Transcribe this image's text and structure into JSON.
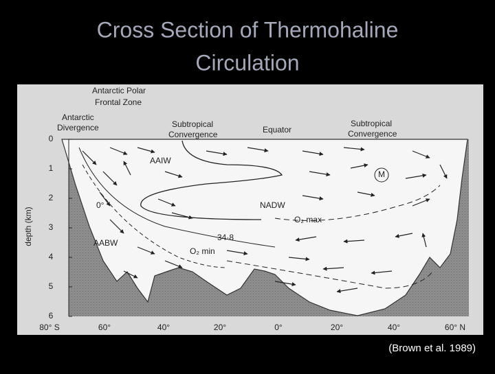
{
  "title": {
    "lines": [
      "Cross Section of Thermohaline",
      "Circulation"
    ]
  },
  "figure": {
    "axis_label": "depth (km)",
    "depth_ticks": [
      0,
      1,
      2,
      3,
      4,
      5,
      6
    ],
    "latitude_labels": [
      "80° S",
      "60°",
      "40°",
      "20°",
      "0°",
      "20°",
      "40°",
      "60° N"
    ],
    "labels": [
      "Antarctic Polar",
      "Frontal Zone",
      "Antarctic",
      "Divergence",
      "Subtropical",
      "Convergence",
      "Equator",
      "Subtropical",
      "Convergence",
      "AAIW",
      "M",
      "NADW",
      "O₂ max",
      "34·8",
      "0°",
      "AABW",
      "O₂ min"
    ]
  },
  "caption": "(Brown et al. 1989)"
}
